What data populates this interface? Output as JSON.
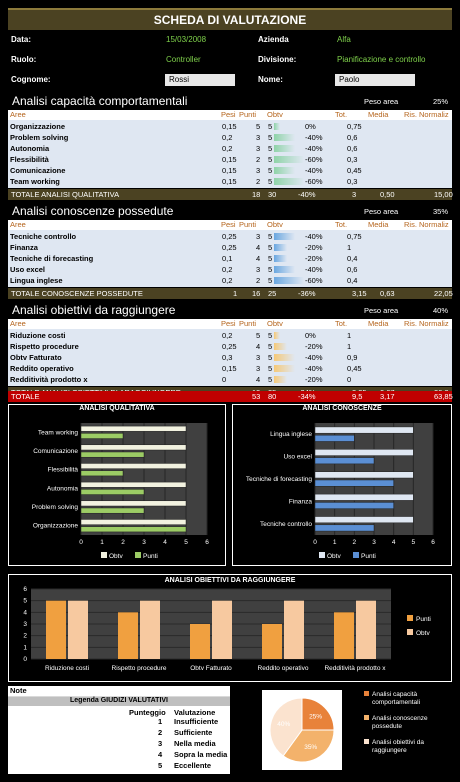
{
  "title": "SCHEDA DI VALUTAZIONE",
  "header": {
    "data_label": "Data:",
    "data_value": "15/03/2008",
    "azienda_label": "Azienda",
    "azienda_value": "Alfa",
    "ruolo_label": "Ruolo:",
    "ruolo_value": "Controller",
    "divisione_label": "Divisione:",
    "divisione_value": "Pianificazione e controllo",
    "cognome_label": "Cognome:",
    "cognome_value": "Rossi",
    "nome_label": "Nome:",
    "nome_value": "Paolo"
  },
  "columns": {
    "aree": "Aree",
    "pesi": "Pesi",
    "punti": "Punti",
    "obtv": "Obtv",
    "tot": "Tot.",
    "media": "Media",
    "ris": "Ris. Normaliz"
  },
  "peso_area_label": "Peso area",
  "sections": [
    {
      "title": "Analisi capacità comportamentali",
      "peso_area": "25%",
      "rows": [
        {
          "name": "Organizzazione",
          "peso": "0,15",
          "punti": "5",
          "obtv": "5",
          "pct": "0%",
          "pct_value": 0,
          "tot": "0,75"
        },
        {
          "name": "Problem solving",
          "peso": "0,2",
          "punti": "3",
          "obtv": "5",
          "pct": "-40%",
          "pct_value": -40,
          "tot": "0,6"
        },
        {
          "name": "Autonomia",
          "peso": "0,2",
          "punti": "3",
          "obtv": "5",
          "pct": "-40%",
          "pct_value": -40,
          "tot": "0,6"
        },
        {
          "name": "Flessibilità",
          "peso": "0,15",
          "punti": "2",
          "obtv": "5",
          "pct": "-60%",
          "pct_value": -60,
          "tot": "0,3"
        },
        {
          "name": "Comunicazione",
          "peso": "0,15",
          "punti": "3",
          "obtv": "5",
          "pct": "-40%",
          "pct_value": -40,
          "tot": "0,45"
        },
        {
          "name": "Team working",
          "peso": "0,15",
          "punti": "2",
          "obtv": "5",
          "pct": "-60%",
          "pct_value": -60,
          "tot": "0,3"
        }
      ],
      "total": {
        "label": "TOTALE ANALISI QUALITATIVA",
        "peso": "",
        "punti": "18",
        "obtv": "30",
        "pct": "-40%",
        "tot": "3",
        "media": "0,50",
        "ris": "15,00"
      }
    },
    {
      "title": "Analisi conoscenze possedute",
      "peso_area": "35%",
      "rows": [
        {
          "name": "Tecniche controllo",
          "peso": "0,25",
          "punti": "3",
          "obtv": "5",
          "pct": "-40%",
          "pct_value": -40,
          "tot": "0,75"
        },
        {
          "name": "Finanza",
          "peso": "0,25",
          "punti": "4",
          "obtv": "5",
          "pct": "-20%",
          "pct_value": -20,
          "tot": "1"
        },
        {
          "name": "Tecniche di forecasting",
          "peso": "0,1",
          "punti": "4",
          "obtv": "5",
          "pct": "-20%",
          "pct_value": -20,
          "tot": "0,4"
        },
        {
          "name": "Uso excel",
          "peso": "0,2",
          "punti": "3",
          "obtv": "5",
          "pct": "-40%",
          "pct_value": -40,
          "tot": "0,6"
        },
        {
          "name": "Lingua inglese",
          "peso": "0,2",
          "punti": "2",
          "obtv": "5",
          "pct": "-60%",
          "pct_value": -60,
          "tot": "0,4"
        }
      ],
      "total": {
        "label": "TOTALE CONOSCENZE POSSEDUTE",
        "peso": "1",
        "punti": "16",
        "obtv": "25",
        "pct": "-36%",
        "tot": "3,15",
        "media": "0,63",
        "ris": "22,05"
      }
    },
    {
      "title": "Analisi obiettivi da raggiungere",
      "peso_area": "40%",
      "rows": [
        {
          "name": "Riduzione costi",
          "peso": "0,2",
          "punti": "5",
          "obtv": "5",
          "pct": "0%",
          "pct_value": 0,
          "tot": "1"
        },
        {
          "name": "Rispetto procedure",
          "peso": "0,25",
          "punti": "4",
          "obtv": "5",
          "pct": "-20%",
          "pct_value": -20,
          "tot": "1"
        },
        {
          "name": "Obtv Fatturato",
          "peso": "0,3",
          "punti": "3",
          "obtv": "5",
          "pct": "-40%",
          "pct_value": -40,
          "tot": "0,9"
        },
        {
          "name": "Reddito operativo",
          "peso": "0,15",
          "punti": "3",
          "obtv": "5",
          "pct": "-40%",
          "pct_value": -40,
          "tot": "0,45"
        },
        {
          "name": "Redditività prodotto x",
          "peso": "0",
          "punti": "4",
          "obtv": "5",
          "pct": "-20%",
          "pct_value": -20,
          "tot": "0"
        }
      ],
      "total": {
        "label": "TOTALE ANALISI OBIETTIVI DI ARAGGIUNGERE",
        "peso": "",
        "punti": "19",
        "obtv": "25",
        "pct": "-24%",
        "tot": "3,35",
        "media": "0,67",
        "ris": "26,8"
      }
    }
  ],
  "grand_total": {
    "label": "TOTALE",
    "punti": "53",
    "obtv": "80",
    "pct": "-34%",
    "tot": "9,5",
    "media": "3,17",
    "ris": "63,85"
  },
  "chart_data": [
    {
      "type": "bar",
      "title": "ANALISI QUALITATIVA",
      "orientation": "horizontal",
      "categories": [
        "Organizzazione",
        "Problem solving",
        "Autonomia",
        "Flessibilità",
        "Comunicazione",
        "Team working"
      ],
      "series": [
        {
          "name": "Obtv",
          "values": [
            5,
            5,
            5,
            5,
            5,
            5
          ],
          "color": "#f2f2e0"
        },
        {
          "name": "Punti",
          "values": [
            5,
            3,
            3,
            2,
            3,
            2
          ],
          "color": "#9ccc65"
        }
      ],
      "xlim": [
        0,
        6
      ],
      "ticks": [
        "0",
        "1",
        "2",
        "3",
        "4",
        "5",
        "6"
      ],
      "legend": "bottom"
    },
    {
      "type": "bar",
      "title": "ANALISI CONOSCENZE",
      "orientation": "horizontal",
      "categories": [
        "Tecniche controllo",
        "Finanza",
        "Tecniche di forecasting",
        "Uso excel",
        "Lingua inglese"
      ],
      "series": [
        {
          "name": "Obtv",
          "values": [
            5,
            5,
            5,
            5,
            5
          ],
          "color": "#dfe7f2"
        },
        {
          "name": "Punti",
          "values": [
            3,
            4,
            4,
            3,
            2
          ],
          "color": "#5b8fd4"
        }
      ],
      "xlim": [
        0,
        6
      ],
      "ticks": [
        "0",
        "1",
        "2",
        "3",
        "4",
        "5",
        "6"
      ],
      "legend": "bottom"
    },
    {
      "type": "bar",
      "title": "ANALISI OBIETTIVI DA RAGGIUNGERE",
      "orientation": "vertical",
      "categories": [
        "Riduzione costi",
        "Rispetto procedure",
        "Obtv Fatturato",
        "Reddito operativo",
        "Redditività prodotto x"
      ],
      "series": [
        {
          "name": "Punti",
          "values": [
            5,
            4,
            3,
            3,
            4
          ],
          "color": "#f0a040"
        },
        {
          "name": "Obtv",
          "values": [
            5,
            5,
            5,
            5,
            5
          ],
          "color": "#f7c9a0"
        }
      ],
      "ylim": [
        0,
        6
      ],
      "ticks": [
        "0",
        "1",
        "2",
        "3",
        "4",
        "5",
        "6"
      ],
      "legend": "right"
    },
    {
      "type": "pie",
      "labels": [
        "Analisi capacità comportamentali",
        "Analisi conoscenze possedute",
        "Analisi obiettivi da raggiungere"
      ],
      "values": [
        25,
        35,
        40
      ],
      "value_labels": [
        "25%",
        "35%",
        "40%"
      ],
      "colors": [
        "#e8823a",
        "#f3b26b",
        "#fbe3cf"
      ],
      "legend": "right"
    }
  ],
  "note": {
    "label": "Note"
  },
  "legend_box": {
    "title": "Legenda GIUDIZI VALUTATIVI",
    "header_left": "Punteggio",
    "header_right": "Valutazione",
    "items": [
      {
        "score": "1",
        "label": "Insufficiente"
      },
      {
        "score": "2",
        "label": "Sufficiente"
      },
      {
        "score": "3",
        "label": "Nella media"
      },
      {
        "score": "4",
        "label": "Sopra la media"
      },
      {
        "score": "5",
        "label": "Eccellente"
      }
    ]
  }
}
